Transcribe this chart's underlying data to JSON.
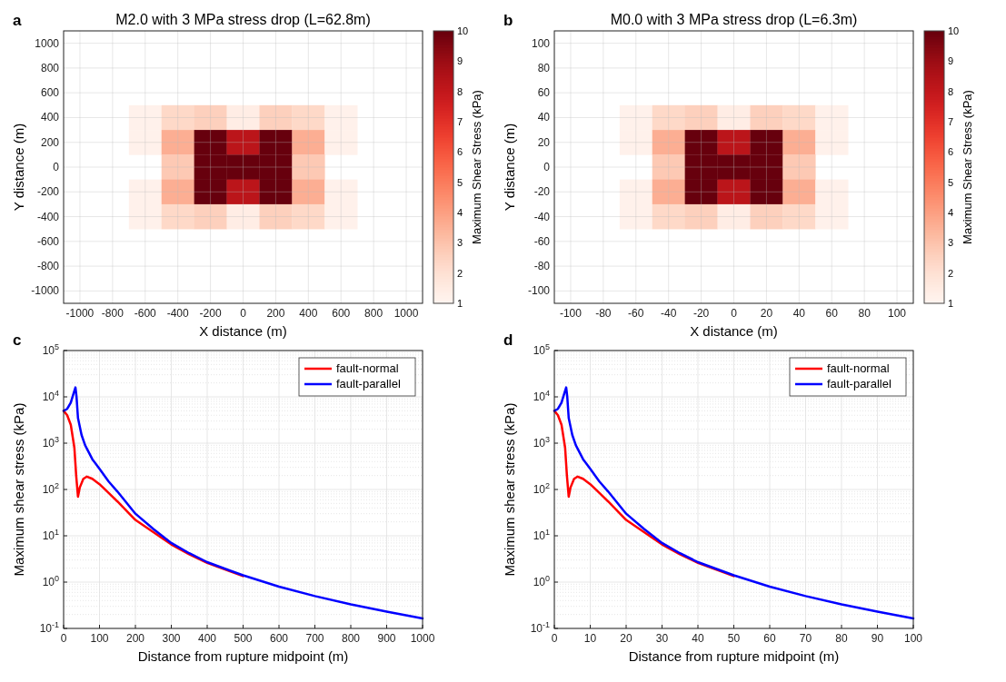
{
  "chart_data": [
    {
      "type": "heatmap",
      "title": "M2.0 with 3 MPa stress drop (L=62.8m)",
      "xlabel": "X distance (m)",
      "ylabel": "Y distance (m)",
      "clabel": "Maximum Shear Stress (kPa)",
      "annotations": [
        "a"
      ],
      "grid": true,
      "clim": [
        1,
        10
      ],
      "cticks": [
        1,
        2,
        3,
        4,
        5,
        6,
        7,
        8,
        9,
        10
      ],
      "categories": [
        "-1000",
        "-800",
        "-600",
        "-400",
        "-200",
        "0",
        "200",
        "400",
        "600",
        "800",
        "1000"
      ],
      "y_categories": [
        "1000",
        "800",
        "600",
        "400",
        "200",
        "0",
        "-200",
        "-400",
        "-600",
        "-800",
        "-1000"
      ],
      "cells": [
        [
          null,
          null,
          null,
          null,
          null,
          null,
          null,
          null,
          null,
          null,
          null
        ],
        [
          null,
          null,
          null,
          null,
          null,
          null,
          null,
          null,
          null,
          null,
          null
        ],
        [
          null,
          null,
          null,
          null,
          null,
          null,
          null,
          null,
          null,
          null,
          null
        ],
        [
          null,
          null,
          1.2,
          2.3,
          2.6,
          1.4,
          2.6,
          2.3,
          1.2,
          null,
          null
        ],
        [
          null,
          null,
          1.2,
          3.6,
          10,
          8.2,
          10,
          3.6,
          1.2,
          null,
          null
        ],
        [
          null,
          null,
          null,
          2.8,
          10,
          10,
          10,
          2.8,
          null,
          null,
          null
        ],
        [
          null,
          null,
          1.2,
          3.6,
          10,
          8.2,
          10,
          3.6,
          1.2,
          null,
          null
        ],
        [
          null,
          null,
          1.2,
          2.3,
          2.6,
          1.4,
          2.6,
          2.3,
          1.2,
          null,
          null
        ],
        [
          null,
          null,
          null,
          null,
          null,
          null,
          null,
          null,
          null,
          null,
          null
        ],
        [
          null,
          null,
          null,
          null,
          null,
          null,
          null,
          null,
          null,
          null,
          null
        ],
        [
          null,
          null,
          null,
          null,
          null,
          null,
          null,
          null,
          null,
          null,
          null
        ]
      ]
    },
    {
      "type": "heatmap",
      "title": "M0.0 with 3 MPa stress drop (L=6.3m)",
      "xlabel": "X distance (m)",
      "ylabel": "Y distance (m)",
      "clabel": "Maximum Shear Stress (kPa)",
      "annotations": [
        "b"
      ],
      "grid": true,
      "clim": [
        1,
        10
      ],
      "cticks": [
        1,
        2,
        3,
        4,
        5,
        6,
        7,
        8,
        9,
        10
      ],
      "categories": [
        "-100",
        "-80",
        "-60",
        "-40",
        "-20",
        "0",
        "20",
        "40",
        "60",
        "80",
        "100"
      ],
      "y_categories": [
        "100",
        "80",
        "60",
        "40",
        "20",
        "0",
        "-20",
        "-40",
        "-60",
        "-80",
        "-100"
      ],
      "cells": [
        [
          null,
          null,
          null,
          null,
          null,
          null,
          null,
          null,
          null,
          null,
          null
        ],
        [
          null,
          null,
          null,
          null,
          null,
          null,
          null,
          null,
          null,
          null,
          null
        ],
        [
          null,
          null,
          null,
          null,
          null,
          null,
          null,
          null,
          null,
          null,
          null
        ],
        [
          null,
          null,
          1.2,
          2.3,
          2.6,
          1.4,
          2.6,
          2.3,
          1.2,
          null,
          null
        ],
        [
          null,
          null,
          1.2,
          3.6,
          10,
          8.2,
          10,
          3.6,
          1.2,
          null,
          null
        ],
        [
          null,
          null,
          null,
          2.8,
          10,
          10,
          10,
          2.8,
          null,
          null,
          null
        ],
        [
          null,
          null,
          1.2,
          3.6,
          10,
          8.2,
          10,
          3.6,
          1.2,
          null,
          null
        ],
        [
          null,
          null,
          1.2,
          2.3,
          2.6,
          1.4,
          2.6,
          2.3,
          1.2,
          null,
          null
        ],
        [
          null,
          null,
          null,
          null,
          null,
          null,
          null,
          null,
          null,
          null,
          null
        ],
        [
          null,
          null,
          null,
          null,
          null,
          null,
          null,
          null,
          null,
          null,
          null
        ],
        [
          null,
          null,
          null,
          null,
          null,
          null,
          null,
          null,
          null,
          null,
          null
        ]
      ]
    },
    {
      "type": "line",
      "xlabel": "Distance from rupture midpoint (m)",
      "ylabel": "Maximum shear stress (kPa)",
      "annotations": [
        "c"
      ],
      "log": true,
      "grid": true,
      "legend": "top right",
      "xlim": [
        0,
        1000
      ],
      "xticks": [
        0,
        100,
        200,
        300,
        400,
        500,
        600,
        700,
        800,
        900,
        1000
      ],
      "ylim": [
        0.1,
        100000
      ],
      "yticks": [
        {
          "value": 0.1,
          "label": "10$^{-1}$"
        },
        {
          "value": 1,
          "label": "10$^{0}$"
        },
        {
          "value": 10,
          "label": "10$^{1}$"
        },
        {
          "value": 100,
          "label": "10$^{2}$"
        },
        {
          "value": 1000,
          "label": "10$^{3}$"
        },
        {
          "value": 10000,
          "label": "10$^{4}$"
        },
        {
          "value": 100000,
          "label": "10$^{5}$"
        }
      ],
      "series": [
        {
          "name": "fault-normal",
          "color": "#ff0000",
          "x": [
            0,
            10,
            20,
            30,
            35,
            40,
            45,
            55,
            65,
            80,
            100,
            125,
            150,
            200,
            250,
            300,
            350,
            400,
            500
          ],
          "values": [
            5000,
            4000,
            2500,
            800,
            200,
            70,
            110,
            170,
            190,
            170,
            130,
            85,
            55,
            22,
            12,
            6.5,
            4,
            2.6,
            1.35
          ]
        },
        {
          "name": "fault-parallel",
          "color": "#0000ff",
          "x": [
            0,
            10,
            20,
            28,
            33,
            36,
            40,
            50,
            60,
            80,
            100,
            125,
            150,
            200,
            250,
            300,
            350,
            400,
            500,
            600,
            700,
            800,
            900,
            1000
          ],
          "values": [
            5000,
            5500,
            7500,
            12000,
            16000,
            10000,
            3500,
            1500,
            900,
            450,
            280,
            150,
            90,
            30,
            14,
            7,
            4.2,
            2.7,
            1.4,
            0.8,
            0.5,
            0.33,
            0.23,
            0.165
          ]
        }
      ]
    },
    {
      "type": "line",
      "xlabel": "Distance from rupture midpoint (m)",
      "ylabel": "Maximum shear stress (kPa)",
      "annotations": [
        "d"
      ],
      "log": true,
      "grid": true,
      "legend": "top right",
      "xlim": [
        0,
        100
      ],
      "xticks": [
        0,
        10,
        20,
        30,
        40,
        50,
        60,
        70,
        80,
        90,
        100
      ],
      "ylim": [
        0.1,
        100000
      ],
      "yticks": [
        {
          "value": 0.1,
          "label": "10$^{-1}$"
        },
        {
          "value": 1,
          "label": "10$^{0}$"
        },
        {
          "value": 10,
          "label": "10$^{1}$"
        },
        {
          "value": 100,
          "label": "10$^{2}$"
        },
        {
          "value": 1000,
          "label": "10$^{3}$"
        },
        {
          "value": 10000,
          "label": "10$^{4}$"
        },
        {
          "value": 100000,
          "label": "10$^{5}$"
        }
      ],
      "series": [
        {
          "name": "fault-normal",
          "color": "#ff0000",
          "x": [
            0,
            1,
            2,
            3,
            3.5,
            4,
            4.5,
            5.5,
            6.5,
            8,
            10,
            12.5,
            15,
            20,
            25,
            30,
            35,
            40,
            50
          ],
          "values": [
            5000,
            4000,
            2500,
            800,
            200,
            70,
            110,
            170,
            190,
            170,
            130,
            85,
            55,
            22,
            12,
            6.5,
            4,
            2.6,
            1.35
          ]
        },
        {
          "name": "fault-parallel",
          "color": "#0000ff",
          "x": [
            0,
            1,
            2,
            2.8,
            3.3,
            3.6,
            4,
            5,
            6,
            8,
            10,
            12.5,
            15,
            20,
            25,
            30,
            35,
            40,
            50,
            60,
            70,
            80,
            90,
            100
          ],
          "values": [
            5000,
            5500,
            7500,
            12000,
            16000,
            10000,
            3500,
            1500,
            900,
            450,
            280,
            150,
            90,
            30,
            14,
            7,
            4.2,
            2.7,
            1.4,
            0.8,
            0.5,
            0.33,
            0.23,
            0.165
          ]
        }
      ]
    }
  ]
}
